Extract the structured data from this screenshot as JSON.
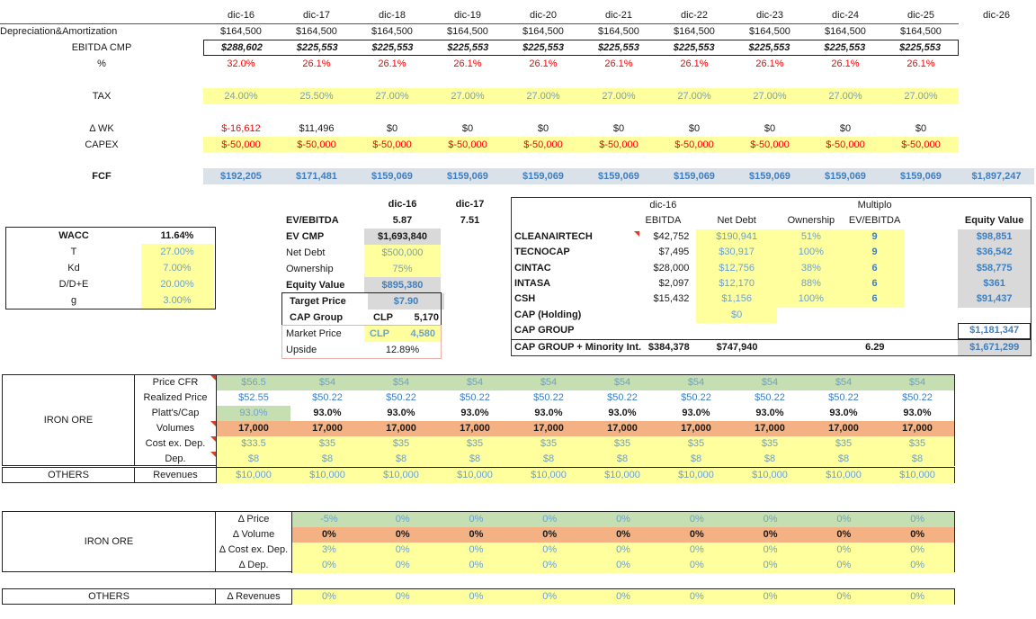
{
  "colors": {
    "yellow": "#ffff9d",
    "green": "#c6dfb2",
    "orange": "#f4b183",
    "gray": "#d9d9d9",
    "fcf_band": "#dbe1e9",
    "input_blue": "#6ba1cf",
    "calc_blue": "#3e7fc1",
    "red": "#ff0000"
  },
  "top_table": {
    "columns": [
      "dic-16",
      "dic-17",
      "dic-18",
      "dic-19",
      "dic-20",
      "dic-21",
      "dic-22",
      "dic-23",
      "dic-24",
      "dic-25",
      "dic-26"
    ],
    "rows": {
      "dep": {
        "label": "Depreciation&Amortization",
        "values": [
          "$164,500",
          "$164,500",
          "$164,500",
          "$164,500",
          "$164,500",
          "$164,500",
          "$164,500",
          "$164,500",
          "$164,500",
          "$164,500"
        ]
      },
      "ebitda": {
        "label": "EBITDA CMP",
        "values": [
          "$288,602",
          "$225,553",
          "$225,553",
          "$225,553",
          "$225,553",
          "$225,553",
          "$225,553",
          "$225,553",
          "$225,553",
          "$225,553"
        ]
      },
      "pct": {
        "label": "%",
        "values": [
          "32.0%",
          "26.1%",
          "26.1%",
          "26.1%",
          "26.1%",
          "26.1%",
          "26.1%",
          "26.1%",
          "26.1%",
          "26.1%"
        ]
      },
      "tax": {
        "label": "TAX",
        "values": [
          "24.00%",
          "25.50%",
          "27.00%",
          "27.00%",
          "27.00%",
          "27.00%",
          "27.00%",
          "27.00%",
          "27.00%",
          "27.00%"
        ]
      },
      "dwk": {
        "label": "Δ WK",
        "values": [
          "$-16,612",
          "$11,496",
          "$0",
          "$0",
          "$0",
          "$0",
          "$0",
          "$0",
          "$0",
          "$0"
        ]
      },
      "capex": {
        "label": "CAPEX",
        "values": [
          "$-50,000",
          "$-50,000",
          "$-50,000",
          "$-50,000",
          "$-50,000",
          "$-50,000",
          "$-50,000",
          "$-50,000",
          "$-50,000",
          "$-50,000"
        ]
      },
      "fcf": {
        "label": "FCF",
        "values": [
          "$192,205",
          "$171,481",
          "$159,069",
          "$159,069",
          "$159,069",
          "$159,069",
          "$159,069",
          "$159,069",
          "$159,069",
          "$159,069",
          "$1,897,247"
        ]
      }
    }
  },
  "wacc": {
    "rows": [
      {
        "label": "WACC",
        "value": "11.64%"
      },
      {
        "label": "T",
        "value": "27.00%"
      },
      {
        "label": "Kd",
        "value": "7.00%"
      },
      {
        "label": "D/D+E",
        "value": "20.00%"
      },
      {
        "label": "g",
        "value": "3.00%"
      }
    ]
  },
  "valuation": {
    "col1_header": "dic-16",
    "col2_header": "dic-17",
    "ev_ebitda": {
      "label": "EV/EBITDA",
      "v1": "5.87",
      "v2": "7.51"
    },
    "ev_cmp": {
      "label": "EV CMP",
      "value": "$1,693,840"
    },
    "net_debt": {
      "label": "Net Debt",
      "value": "$500,000"
    },
    "ownership": {
      "label": "Ownership",
      "value": "75%"
    },
    "equity_value": {
      "label": "Equity Value",
      "value": "$895,380"
    },
    "target_price": {
      "label": "Target Price",
      "value": "$7.90"
    },
    "cap_group": {
      "label": "CAP Group",
      "currency": "CLP",
      "value": "5,170"
    },
    "market_price": {
      "label": "Market Price",
      "currency": "CLP",
      "value": "4,580"
    },
    "upside": {
      "label": "Upside",
      "value": "12.89%"
    }
  },
  "subsidiaries": {
    "headers": {
      "year": "dic-16",
      "multiplo": "Multiplo",
      "ebitda": "EBITDA",
      "net_debt": "Net Debt",
      "ownership": "Ownership",
      "ev_ebitda": "EV/EBITDA",
      "equity_value": "Equity Value"
    },
    "rows": [
      {
        "name": "CLEANAIRTECH",
        "ebitda": "$42,752",
        "net_debt": "$190,941",
        "ownership": "51%",
        "multiple": "9",
        "equity": "$98,851",
        "comment": true,
        "kind": "normal"
      },
      {
        "name": "TECNOCAP",
        "ebitda": "$7,495",
        "net_debt": "$30,917",
        "ownership": "100%",
        "multiple": "9",
        "equity": "$36,542",
        "kind": "normal"
      },
      {
        "name": "CINTAC",
        "ebitda": "$28,000",
        "net_debt": "$12,756",
        "ownership": "38%",
        "multiple": "6",
        "equity": "$58,775",
        "kind": "normal"
      },
      {
        "name": "INTASA",
        "ebitda": "$2,097",
        "net_debt": "$12,170",
        "ownership": "88%",
        "multiple": "6",
        "equity": "$361",
        "kind": "normal"
      },
      {
        "name": "CSH",
        "ebitda": "$15,432",
        "net_debt": "$1,156",
        "ownership": "100%",
        "multiple": "6",
        "equity": "$91,437",
        "kind": "normal"
      },
      {
        "name": "CAP (Holding)",
        "net_debt": "$0",
        "kind": "holding"
      },
      {
        "name": "CAP GROUP",
        "equity": "$1,181,347",
        "kind": "capgroup"
      },
      {
        "name": "CAP GROUP + Minority Int.",
        "ebitda": "$384,378",
        "net_debt": "$747,940",
        "multiple": "6.29",
        "equity": "$1,671,299",
        "kind": "total"
      }
    ]
  },
  "iron_ore": {
    "group": "IRON ORE",
    "rows": [
      {
        "label": "Price CFR",
        "style": "green",
        "comment": true,
        "values": [
          "$56.5",
          "$54",
          "$54",
          "$54",
          "$54",
          "$54",
          "$54",
          "$54",
          "$54",
          "$54"
        ]
      },
      {
        "label": "Realized Price",
        "style": "white-blue",
        "values": [
          "$52.55",
          "$50.22",
          "$50.22",
          "$50.22",
          "$50.22",
          "$50.22",
          "$50.22",
          "$50.22",
          "$50.22",
          "$50.22"
        ]
      },
      {
        "label": "Platt's/Cap",
        "style": "platts",
        "values": [
          "93.0%",
          "93.0%",
          "93.0%",
          "93.0%",
          "93.0%",
          "93.0%",
          "93.0%",
          "93.0%",
          "93.0%",
          "93.0%"
        ]
      },
      {
        "label": "Volumes",
        "style": "orange",
        "comment": true,
        "values": [
          "17,000",
          "17,000",
          "17,000",
          "17,000",
          "17,000",
          "17,000",
          "17,000",
          "17,000",
          "17,000",
          "17,000"
        ]
      },
      {
        "label": "Cost ex. Dep.",
        "style": "yellow",
        "comment": true,
        "values": [
          "$33.5",
          "$35",
          "$35",
          "$35",
          "$35",
          "$35",
          "$35",
          "$35",
          "$35",
          "$35"
        ]
      },
      {
        "label": "Dep.",
        "style": "yellow",
        "comment": true,
        "values": [
          "$8",
          "$8",
          "$8",
          "$8",
          "$8",
          "$8",
          "$8",
          "$8",
          "$8",
          "$8"
        ]
      }
    ]
  },
  "others_row": {
    "group": "OTHERS",
    "label": "Revenues",
    "style": "yellow",
    "values": [
      "$10,000",
      "$10,000",
      "$10,000",
      "$10,000",
      "$10,000",
      "$10,000",
      "$10,000",
      "$10,000",
      "$10,000",
      "$10,000"
    ]
  },
  "iron_ore_delta": {
    "group": "IRON ORE",
    "rows": [
      {
        "label": "Δ Price",
        "style": "green",
        "values": [
          "-5%",
          "0%",
          "0%",
          "0%",
          "0%",
          "0%",
          "0%",
          "0%",
          "0%"
        ]
      },
      {
        "label": "Δ Volume",
        "style": "orange",
        "values": [
          "0%",
          "0%",
          "0%",
          "0%",
          "0%",
          "0%",
          "0%",
          "0%",
          "0%"
        ]
      },
      {
        "label": "Δ Cost ex. Dep.",
        "style": "yellow",
        "values": [
          "3%",
          "0%",
          "0%",
          "0%",
          "0%",
          "0%",
          "0%",
          "0%",
          "0%"
        ]
      },
      {
        "label": "Δ Dep.",
        "style": "yellow",
        "values": [
          "0%",
          "0%",
          "0%",
          "0%",
          "0%",
          "0%",
          "0%",
          "0%",
          "0%"
        ]
      }
    ]
  },
  "others_delta": {
    "group": "OTHERS",
    "label": "Δ Revenues",
    "style": "yellow",
    "values": [
      "0%",
      "0%",
      "0%",
      "0%",
      "0%",
      "0%",
      "0%",
      "0%",
      "0%"
    ]
  }
}
